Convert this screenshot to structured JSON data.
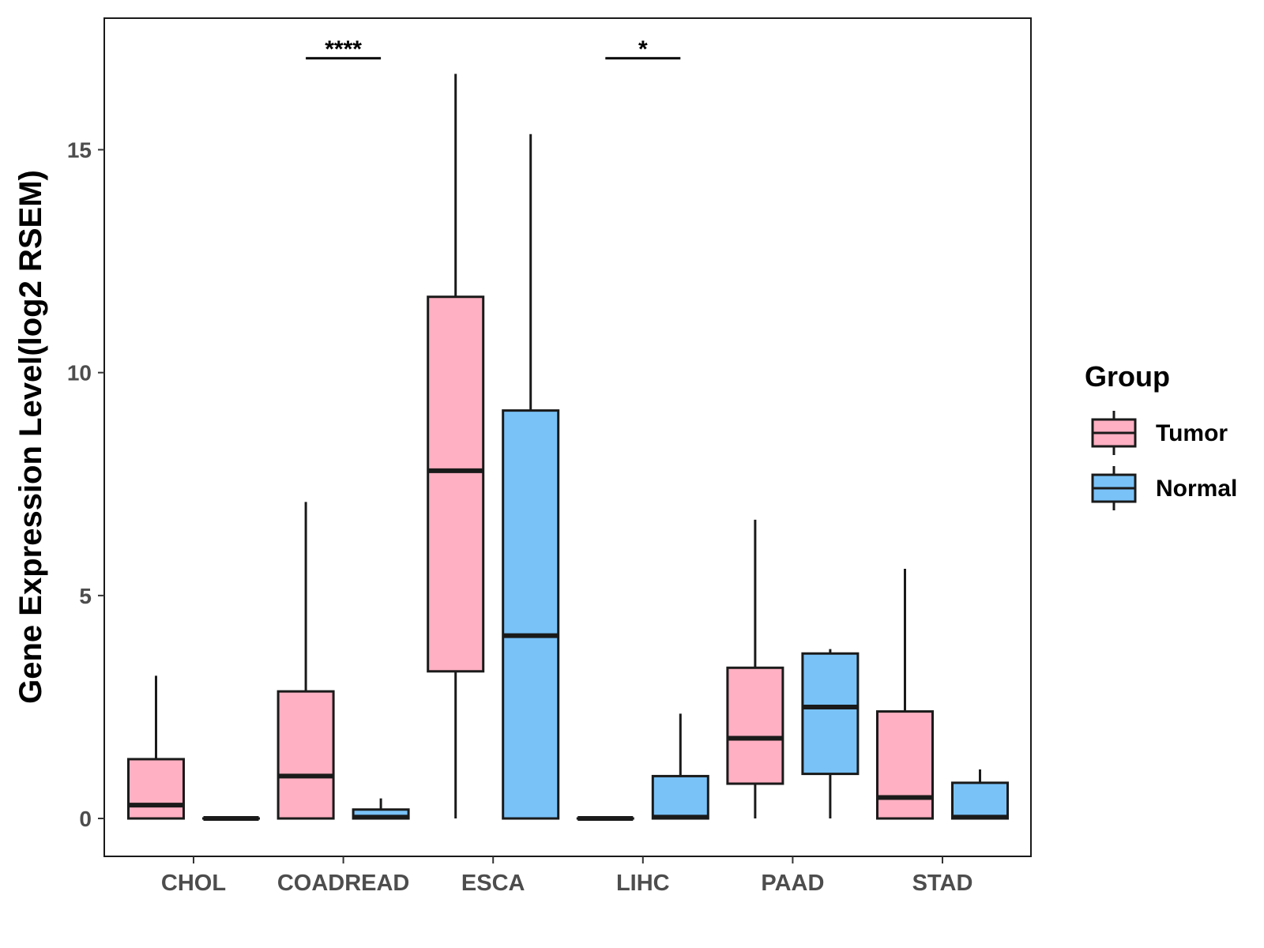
{
  "chart_data": {
    "type": "boxplot",
    "title": "",
    "xlabel": "",
    "ylabel": "Gene Expression Level(log2 RSEM)",
    "ylim": [
      -0.85,
      17.95
    ],
    "yticks": [
      0,
      5,
      10,
      15
    ],
    "categories": [
      "CHOL",
      "COADREAD",
      "ESCA",
      "LIHC",
      "PAAD",
      "STAD"
    ],
    "grid": false,
    "legend": {
      "title": "Group",
      "position": "right",
      "entries": [
        {
          "name": "Tumor",
          "color": "#FFB0C2"
        },
        {
          "name": "Normal",
          "color": "#79C2F8"
        }
      ]
    },
    "series": [
      {
        "name": "Tumor",
        "color": "#FFB0C2",
        "boxes": [
          {
            "category": "CHOL",
            "min": 0,
            "q1": 0,
            "median": 0.3,
            "q3": 1.33,
            "max": 3.2
          },
          {
            "category": "COADREAD",
            "min": 0,
            "q1": 0,
            "median": 0.95,
            "q3": 2.85,
            "max": 7.1
          },
          {
            "category": "ESCA",
            "min": 0,
            "q1": 3.3,
            "median": 7.8,
            "q3": 11.7,
            "max": 16.7
          },
          {
            "category": "LIHC",
            "min": 0,
            "q1": 0,
            "median": 0,
            "q3": 0,
            "max": 0
          },
          {
            "category": "PAAD",
            "min": 0,
            "q1": 0.78,
            "median": 1.8,
            "q3": 3.38,
            "max": 6.7
          },
          {
            "category": "STAD",
            "min": 0,
            "q1": 0,
            "median": 0.47,
            "q3": 2.4,
            "max": 5.6
          }
        ]
      },
      {
        "name": "Normal",
        "color": "#79C2F8",
        "boxes": [
          {
            "category": "CHOL",
            "min": 0,
            "q1": 0,
            "median": 0,
            "q3": 0,
            "max": 0
          },
          {
            "category": "COADREAD",
            "min": 0,
            "q1": 0,
            "median": 0.03,
            "q3": 0.2,
            "max": 0.45
          },
          {
            "category": "ESCA",
            "min": 0,
            "q1": 0,
            "median": 4.1,
            "q3": 9.15,
            "max": 15.35
          },
          {
            "category": "LIHC",
            "min": 0,
            "q1": 0,
            "median": 0.03,
            "q3": 0.95,
            "max": 2.35
          },
          {
            "category": "PAAD",
            "min": 0,
            "q1": 1,
            "median": 2.5,
            "q3": 3.7,
            "max": 3.8
          },
          {
            "category": "STAD",
            "min": 0,
            "q1": 0,
            "median": 0.03,
            "q3": 0.8,
            "max": 1.1
          }
        ]
      }
    ],
    "annotations": [
      {
        "category": "COADREAD",
        "label": "****",
        "y": 17.05
      },
      {
        "category": "LIHC",
        "label": "*",
        "y": 17.05
      }
    ]
  }
}
